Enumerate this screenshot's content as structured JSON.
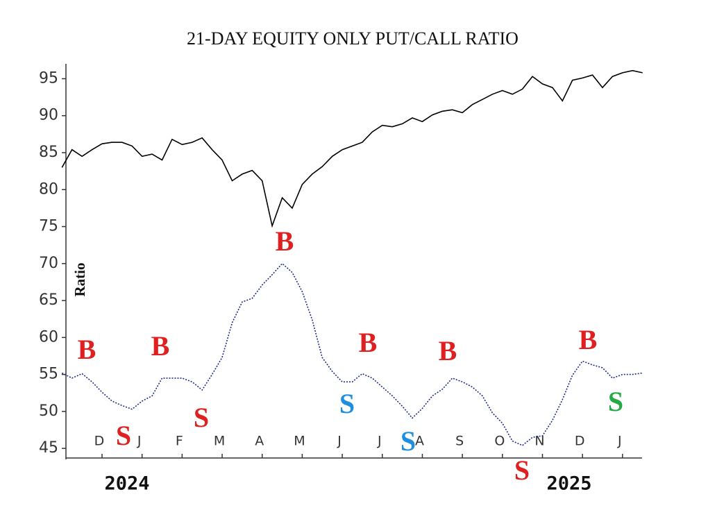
{
  "chart_data": {
    "type": "line",
    "title": "21-DAY EQUITY ONLY PUT/CALL RATIO",
    "y_label": "Ratio",
    "years": [
      "2024",
      "2025"
    ],
    "categories": [
      null,
      null,
      null,
      null,
      "D",
      null,
      null,
      null,
      "J",
      null,
      null,
      null,
      "F",
      null,
      null,
      null,
      "M",
      null,
      null,
      null,
      "A",
      null,
      null,
      null,
      "M",
      null,
      null,
      null,
      "J",
      null,
      null,
      null,
      "J",
      null,
      null,
      null,
      "A",
      null,
      null,
      null,
      "S",
      null,
      null,
      null,
      "O",
      null,
      null,
      null,
      "N",
      null,
      null,
      null,
      "D",
      null,
      null,
      null,
      "J",
      null,
      null
    ],
    "series": [
      {
        "color": "#000000",
        "values": [
          83.0,
          85.4,
          84.5,
          85.4,
          86.2,
          86.4,
          86.4,
          85.9,
          84.5,
          84.8,
          84.0,
          86.8,
          86.1,
          86.4,
          87.0,
          85.4,
          84.0,
          81.2,
          82.1,
          82.6,
          81.2,
          75.1,
          78.9,
          77.5,
          80.7,
          82.1,
          83.1,
          84.5,
          85.4,
          85.9,
          86.4,
          87.8,
          88.7,
          88.5,
          88.9,
          89.7,
          89.2,
          90.1,
          90.6,
          90.8,
          90.4,
          91.5,
          92.2,
          92.9,
          93.4,
          92.9,
          93.6,
          95.3,
          94.3,
          93.8,
          92.0,
          94.8,
          95.1,
          95.5,
          93.8,
          95.3,
          95.8,
          96.1,
          95.8
        ]
      },
      {
        "color": "#1c2a8c",
        "values": [
          55.2,
          54.5,
          55.1,
          54.0,
          52.6,
          51.4,
          50.8,
          50.3,
          51.4,
          52.1,
          54.5,
          54.5,
          54.5,
          54.0,
          52.9,
          55.0,
          57.3,
          62.0,
          64.8,
          65.3,
          67.1,
          68.5,
          70.0,
          68.8,
          66.2,
          62.4,
          57.3,
          55.4,
          54.0,
          54.0,
          55.1,
          54.5,
          53.3,
          52.1,
          50.7,
          49.1,
          50.4,
          52.1,
          53.0,
          54.5,
          54.0,
          53.3,
          52.1,
          49.8,
          48.4,
          46.0,
          45.4,
          46.5,
          46.7,
          48.8,
          51.6,
          54.9,
          56.8,
          56.3,
          55.9,
          54.5,
          55.0,
          55.0,
          55.2
        ]
      }
    ],
    "ylim": [
      43.7,
      97.2
    ],
    "yticks": [
      45,
      50,
      55,
      60,
      65,
      70,
      75,
      80,
      85,
      90,
      95
    ],
    "annotations": [
      {
        "text": "B",
        "color": "#e02020"
      },
      {
        "text": "S",
        "color": "#e02020"
      },
      {
        "text": "B",
        "color": "#e02020"
      },
      {
        "text": "S",
        "color": "#e02020"
      },
      {
        "text": "B",
        "color": "#e02020"
      },
      {
        "text": "S",
        "color": "#1e8fe0"
      },
      {
        "text": "B",
        "color": "#e02020"
      },
      {
        "text": "S",
        "color": "#1e8fe0"
      },
      {
        "text": "B",
        "color": "#e02020"
      },
      {
        "text": "S",
        "color": "#e02020"
      },
      {
        "text": "B",
        "color": "#e02020"
      },
      {
        "text": "S",
        "color": "#22aa44"
      }
    ]
  }
}
